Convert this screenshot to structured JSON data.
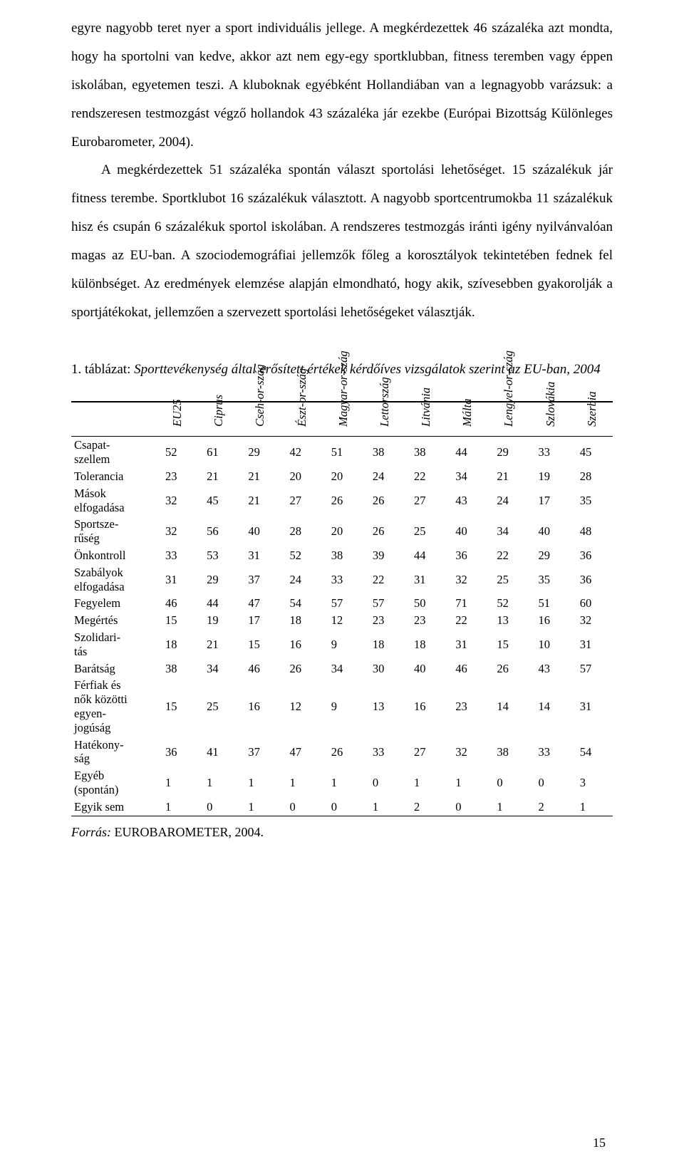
{
  "text": {
    "p1": "egyre nagyobb teret nyer a sport individuális jellege. A megkérdezettek 46 százaléka azt mondta, hogy ha sportolni van kedve, akkor azt nem egy-egy sportklubban, fitness teremben vagy éppen iskolában, egyetemen teszi. A kluboknak egyébként Hollandiában van a legnagyobb varázsuk: a rendszeresen testmozgást végző hollandok 43 százaléka jár ezekbe (Európai Bizottság Különleges Eurobarometer, 2004).",
    "p2": "A megkérdezettek 51 százaléka spontán választ sportolási lehetőséget. 15 százalékuk jár fitness terembe. Sportklubot 16 százalékuk választott. A nagyobb sportcentrumokba 11 százalékuk hisz és csupán 6 százalékuk sportol iskolában. A rendszeres testmozgás iránti igény nyilvánvalóan magas az EU-ban. A szociodemográfiai jellemzők főleg a korosztályok tekintetében fednek fel különbséget. Az eredmények elemzése alapján elmondható, hogy akik, szívesebben gyakorolják a sportjátékokat, jellemzően a szervezett sportolási lehetőségeket választják."
  },
  "caption": {
    "num": "1. táblázat: ",
    "title": "Sporttevékenység által erősített értékek kérdőíves vizsgálatok szerint az EU-ban, 2004"
  },
  "table": {
    "columns": [
      "EU25",
      "Ciprus",
      "Csehország",
      "Észtország",
      "Magyarország",
      "Lettország",
      "Litvánia",
      "Málta",
      "Lengyelország",
      "Szlovákia",
      "Szerbia"
    ],
    "col_breaks": {
      "2": "Cseh-or-szág",
      "3": "Észt-or-szág",
      "4": "Magyar-or-szág",
      "8": "Lengyel-or-szág"
    },
    "rows": [
      {
        "label": "Csapat-\nszellem",
        "vals": [
          52,
          61,
          29,
          42,
          51,
          38,
          38,
          44,
          29,
          33,
          45
        ]
      },
      {
        "label": "Tolerancia",
        "vals": [
          23,
          21,
          21,
          20,
          20,
          24,
          22,
          34,
          21,
          19,
          28
        ]
      },
      {
        "label": "Mások\nelfogadása",
        "vals": [
          32,
          45,
          21,
          27,
          26,
          26,
          27,
          43,
          24,
          17,
          35
        ]
      },
      {
        "label": "Sportsze-\nrűség",
        "vals": [
          32,
          56,
          40,
          28,
          20,
          26,
          25,
          40,
          34,
          40,
          48
        ]
      },
      {
        "label": "Önkontroll",
        "vals": [
          33,
          53,
          31,
          52,
          38,
          39,
          44,
          36,
          22,
          29,
          36
        ]
      },
      {
        "label": "Szabályok\nelfogadása",
        "vals": [
          31,
          29,
          37,
          24,
          33,
          22,
          31,
          32,
          25,
          35,
          36
        ]
      },
      {
        "label": "Fegyelem",
        "vals": [
          46,
          44,
          47,
          54,
          57,
          57,
          50,
          71,
          52,
          51,
          60
        ]
      },
      {
        "label": "Megértés",
        "vals": [
          15,
          19,
          17,
          18,
          12,
          23,
          23,
          22,
          13,
          16,
          32
        ]
      },
      {
        "label": "Szolidari-\ntás",
        "vals": [
          18,
          21,
          15,
          16,
          9,
          18,
          18,
          31,
          15,
          10,
          31
        ]
      },
      {
        "label": "Barátság",
        "vals": [
          38,
          34,
          46,
          26,
          34,
          30,
          40,
          46,
          26,
          43,
          57
        ]
      },
      {
        "label": "Férfiak és\nnők közötti\negyen-\njogúság",
        "vals": [
          15,
          25,
          16,
          12,
          9,
          13,
          16,
          23,
          14,
          14,
          31
        ]
      },
      {
        "label": "Hatékony-\nság",
        "vals": [
          36,
          41,
          37,
          47,
          26,
          33,
          27,
          32,
          38,
          33,
          54
        ]
      },
      {
        "label": "Egyéb\n(spontán)",
        "vals": [
          1,
          1,
          1,
          1,
          1,
          0,
          1,
          1,
          0,
          0,
          3
        ]
      },
      {
        "label": "Egyik sem",
        "vals": [
          1,
          0,
          1,
          0,
          0,
          1,
          2,
          0,
          1,
          2,
          1
        ]
      }
    ],
    "col_width_label": "120px",
    "fontsize": 16.5,
    "header_fontstyle": "italic"
  },
  "source": {
    "label": "Forrás:",
    "text": " EUROBAROMETER, 2004."
  },
  "page_number": "15",
  "colors": {
    "text": "#000000",
    "background": "#ffffff",
    "rule": "#000000"
  },
  "typography": {
    "body_font": "Times New Roman",
    "body_size_pt": 14,
    "line_height": 2.1
  }
}
